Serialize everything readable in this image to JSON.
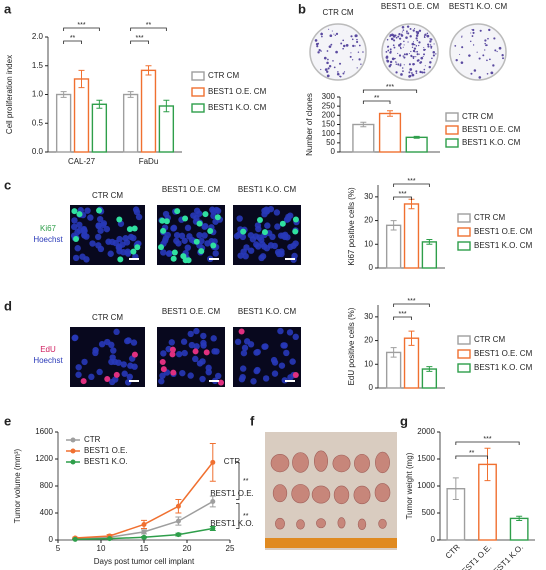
{
  "chart_data": [
    {
      "type": "bar",
      "ylabel": "Cell proliferation index",
      "categories": [
        "CAL-27",
        "FaDu"
      ],
      "series": [
        {
          "name": "CTR CM",
          "color": "#9e9e9e",
          "values": [
            1.0,
            1.0
          ],
          "errors": [
            0.05,
            0.05
          ]
        },
        {
          "name": "BEST1 O.E. CM",
          "color": "#f07030",
          "values": [
            1.27,
            1.42
          ],
          "errors": [
            0.15,
            0.08
          ]
        },
        {
          "name": "BEST1 K.O. CM",
          "color": "#2e9e4a",
          "values": [
            0.83,
            0.8
          ],
          "errors": [
            0.07,
            0.1
          ]
        }
      ],
      "ylim": [
        0,
        2.0
      ],
      "yticks": [
        {
          "value": 0,
          "label": "0.0"
        },
        0.5,
        {
          "value": 1,
          "label": "1.0"
        },
        1.5,
        {
          "value": 2,
          "label": "2.0"
        }
      ],
      "annotations": [
        "**",
        "***",
        "***",
        "**"
      ]
    },
    {
      "type": "bar",
      "ylabel": "Number of clones",
      "categories": [
        null
      ],
      "series": [
        {
          "name": "CTR CM",
          "color": "#9e9e9e",
          "values": [
            150
          ],
          "errors": [
            12
          ]
        },
        {
          "name": "BEST1 O.E. CM",
          "color": "#f07030",
          "values": [
            210
          ],
          "errors": [
            15
          ]
        },
        {
          "name": "BEST1 K.O. CM",
          "color": "#2e9e4a",
          "values": [
            80
          ],
          "errors": [
            5
          ]
        }
      ],
      "ylim": [
        0,
        300
      ],
      "yticks": [
        0,
        50,
        100,
        150,
        200,
        250,
        300
      ],
      "annotations": [
        "**",
        "***"
      ]
    },
    {
      "type": "bar",
      "ylabel": "Ki67 positive cells (%)",
      "categories": [
        null
      ],
      "series": [
        {
          "name": "CTR CM",
          "color": "#9e9e9e",
          "values": [
            18
          ],
          "errors": [
            2
          ]
        },
        {
          "name": "BEST1 O.E. CM",
          "color": "#f07030",
          "values": [
            27
          ],
          "errors": [
            2
          ]
        },
        {
          "name": "BEST1 K.O. CM",
          "color": "#2e9e4a",
          "values": [
            11
          ],
          "errors": [
            1
          ]
        }
      ],
      "ylim": [
        0,
        35
      ],
      "yticks": [
        0,
        10,
        20,
        30
      ],
      "annotations": [
        "***",
        "***"
      ]
    },
    {
      "type": "bar",
      "ylabel": "EdU positive cells (%)",
      "categories": [
        null
      ],
      "series": [
        {
          "name": "CTR CM",
          "color": "#9e9e9e",
          "values": [
            15
          ],
          "errors": [
            2
          ]
        },
        {
          "name": "BEST1 O.E. CM",
          "color": "#f07030",
          "values": [
            21
          ],
          "errors": [
            3
          ]
        },
        {
          "name": "BEST1 K.O. CM",
          "color": "#2e9e4a",
          "values": [
            8
          ],
          "errors": [
            1
          ]
        }
      ],
      "ylim": [
        0,
        35
      ],
      "yticks": [
        0,
        10,
        20,
        30
      ],
      "annotations": [
        "***",
        "***"
      ]
    },
    {
      "type": "line",
      "ylabel": "Tumor volume (mm³)",
      "xlabel": "Days post tumor cell implant",
      "x": [
        7,
        11,
        15,
        19,
        23
      ],
      "series": [
        {
          "name": "CTR",
          "color": "#9e9e9e",
          "values": [
            20,
            40,
            120,
            280,
            570
          ],
          "errors": [
            5,
            10,
            30,
            60,
            80
          ]
        },
        {
          "name": "BEST1 O.E.",
          "color": "#f07030",
          "values": [
            30,
            60,
            230,
            500,
            1150
          ],
          "errors": [
            10,
            20,
            60,
            100,
            280
          ]
        },
        {
          "name": "BEST1 K.O.",
          "color": "#2e9e4a",
          "values": [
            10,
            20,
            40,
            80,
            170
          ],
          "errors": [
            5,
            5,
            10,
            20,
            30
          ]
        }
      ],
      "xlim": [
        5,
        25
      ],
      "xticks": [
        5,
        10,
        15,
        20,
        25
      ],
      "ylim": [
        0,
        1600
      ],
      "yticks": [
        0,
        400,
        800,
        1200,
        1600
      ],
      "annotations": [
        "**",
        "**"
      ]
    },
    {
      "type": "bar",
      "ylabel": "Tumor weight (mg)",
      "categories": [
        "CTR",
        "BEST1 O.E.",
        "BEST1 K.O."
      ],
      "values": [
        950,
        1400,
        400
      ],
      "errors": [
        200,
        300,
        40
      ],
      "colors": [
        "#9e9e9e",
        "#f07030",
        "#2e9e4a"
      ],
      "ylim": [
        0,
        2000
      ],
      "yticks": [
        0,
        500,
        1000,
        1500,
        2000
      ],
      "annotations": [
        "**",
        "***"
      ]
    }
  ],
  "figure": {
    "panel_labels": [
      "a",
      "b",
      "c",
      "d",
      "e",
      "f",
      "g"
    ],
    "b_images": [
      "CTR CM",
      "BEST1 O.E. CM",
      "BEST1 K.O. CM"
    ],
    "c_images": [
      "CTR CM",
      "BEST1 O.E. CM",
      "BEST1 K.O. CM"
    ],
    "c_stains": [
      "Ki67",
      "Hoechst"
    ],
    "d_images": [
      "CTR CM",
      "BEST1 O.E. CM",
      "BEST1 K.O. CM"
    ],
    "d_stains": [
      "EdU",
      "Hoechst"
    ],
    "f_rows": [
      "CTR",
      "BEST1 O.E.",
      "BEST1 K.O."
    ]
  }
}
